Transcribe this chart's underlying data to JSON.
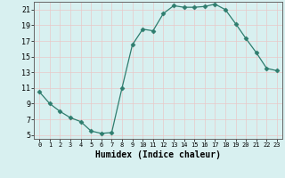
{
  "xlabel": "Humidex (Indice chaleur)",
  "x": [
    0,
    1,
    2,
    3,
    4,
    5,
    6,
    7,
    8,
    9,
    10,
    11,
    12,
    13,
    14,
    15,
    16,
    17,
    18,
    19,
    20,
    21,
    22,
    23
  ],
  "y": [
    10.5,
    9.0,
    8.0,
    7.2,
    6.7,
    5.5,
    5.2,
    5.3,
    11.0,
    16.5,
    18.5,
    18.3,
    20.5,
    21.5,
    21.3,
    21.3,
    21.4,
    21.7,
    21.0,
    19.2,
    17.3,
    15.5,
    13.5,
    13.2
  ],
  "line_color": "#2e7d6e",
  "marker": "D",
  "marker_size": 2.5,
  "background_color": "#d8f0f0",
  "grid_color": "#e8c8c8",
  "ylim": [
    4.5,
    22
  ],
  "xlim": [
    -0.5,
    23.5
  ],
  "yticks": [
    5,
    7,
    9,
    11,
    13,
    15,
    17,
    19,
    21
  ],
  "xticks": [
    0,
    1,
    2,
    3,
    4,
    5,
    6,
    7,
    8,
    9,
    10,
    11,
    12,
    13,
    14,
    15,
    16,
    17,
    18,
    19,
    20,
    21,
    22,
    23
  ],
  "xlabel_fontsize": 7,
  "ytick_fontsize": 6,
  "xtick_fontsize": 5
}
